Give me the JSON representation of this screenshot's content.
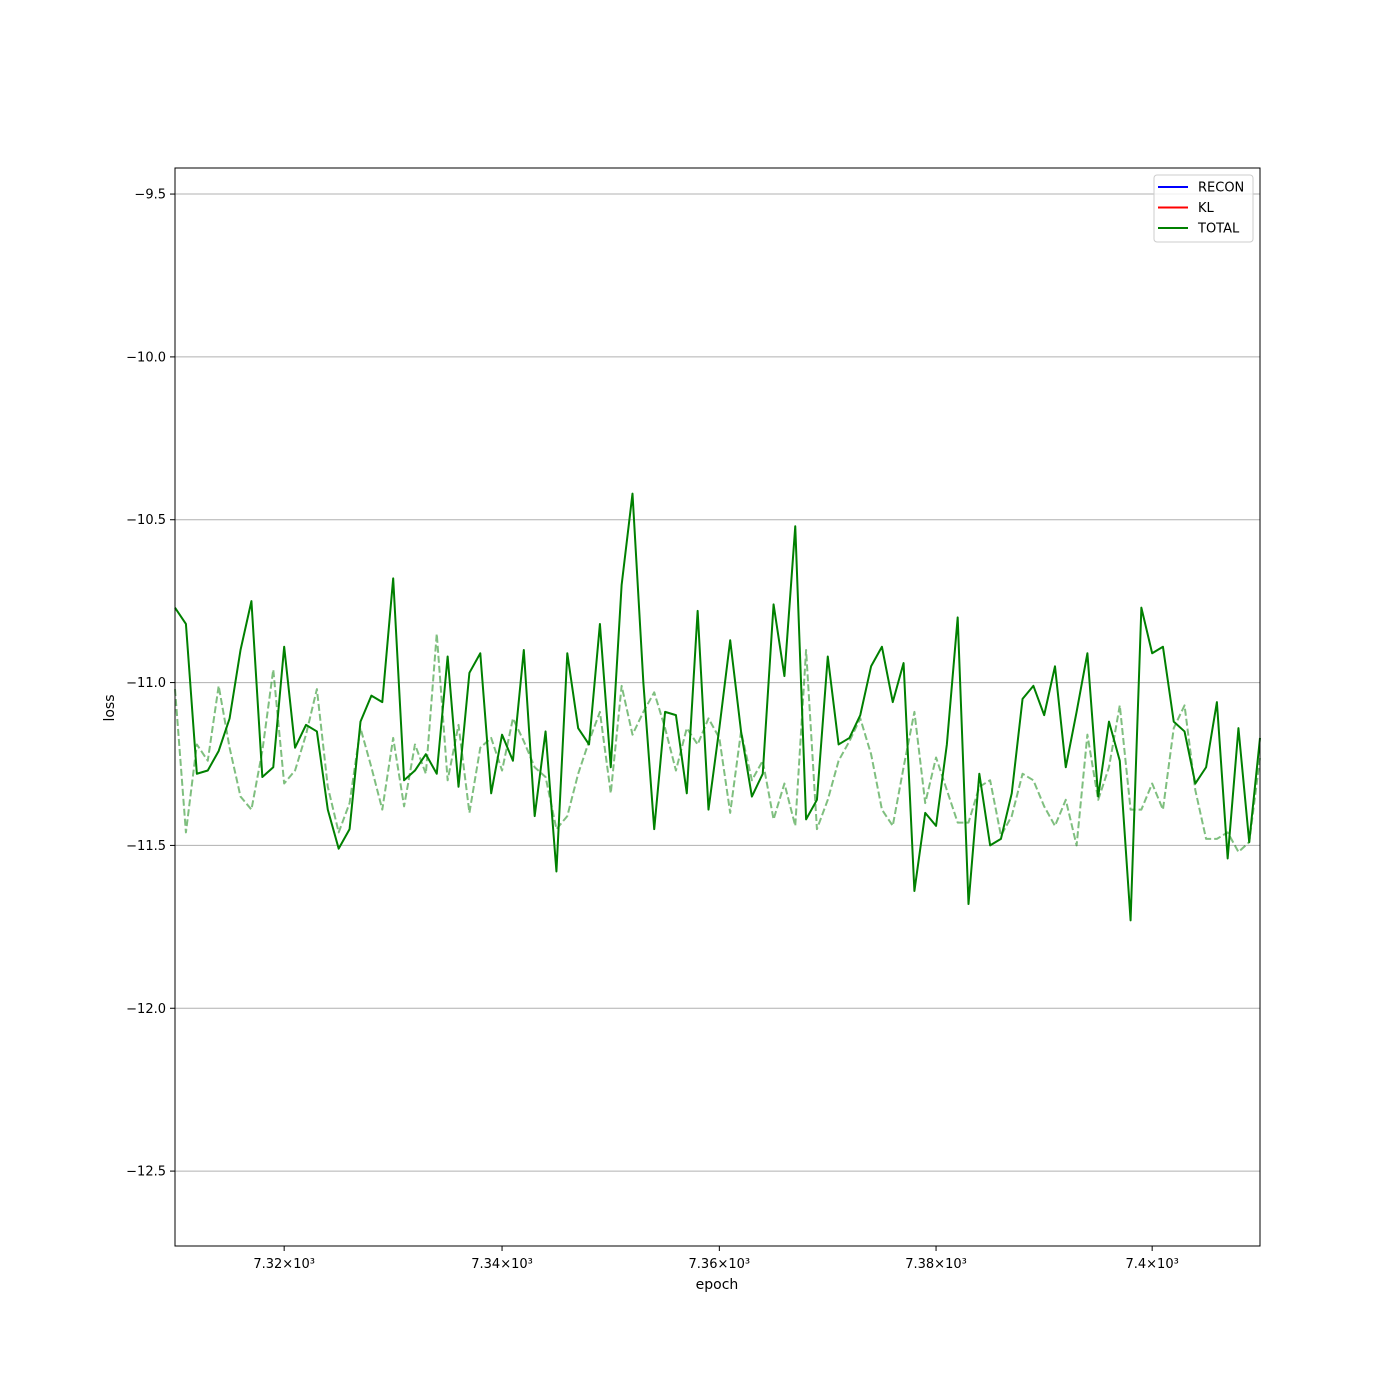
{
  "chart_data": {
    "type": "line",
    "title": "",
    "xlabel": "epoch",
    "ylabel": "loss",
    "xscale": "log",
    "xlim": [
      7310,
      7410
    ],
    "ylim": [
      -12.73,
      -9.42
    ],
    "grid": "y-major",
    "legend_position": "top-right",
    "x_ticks": [
      {
        "value": 7320,
        "label": "7.32×10³"
      },
      {
        "value": 7340,
        "label": "7.34×10³"
      },
      {
        "value": 7360,
        "label": "7.36×10³"
      },
      {
        "value": 7380,
        "label": "7.38×10³"
      },
      {
        "value": 7400,
        "label": "7.4×10³"
      }
    ],
    "y_ticks": [
      {
        "value": -9.5,
        "label": "−9.5"
      },
      {
        "value": -10.0,
        "label": "−10.0"
      },
      {
        "value": -10.5,
        "label": "−10.5"
      },
      {
        "value": -11.0,
        "label": "−11.0"
      },
      {
        "value": -11.5,
        "label": "−11.5"
      },
      {
        "value": -12.0,
        "label": "−12.0"
      },
      {
        "value": -12.5,
        "label": "−12.5"
      }
    ],
    "legend": [
      {
        "name": "RECON",
        "color": "#0000ff"
      },
      {
        "name": "KL",
        "color": "#ff0000"
      },
      {
        "name": "TOTAL",
        "color": "#008000"
      }
    ],
    "x_start": 7310,
    "x_step": 1,
    "series": [
      {
        "name": "TOTAL",
        "color": "#008000",
        "style": "solid",
        "values": [
          -10.77,
          -10.82,
          -11.28,
          -11.27,
          -11.21,
          -11.11,
          -10.9,
          -10.75,
          -11.29,
          -11.26,
          -10.89,
          -11.2,
          -11.13,
          -11.15,
          -11.39,
          -11.51,
          -11.45,
          -11.12,
          -11.04,
          -11.06,
          -10.68,
          -11.3,
          -11.27,
          -11.22,
          -11.28,
          -10.92,
          -11.32,
          -10.97,
          -10.91,
          -11.34,
          -11.16,
          -11.24,
          -10.9,
          -11.41,
          -11.15,
          -11.58,
          -10.91,
          -11.14,
          -11.19,
          -10.82,
          -11.26,
          -10.7,
          -10.42,
          -11.0,
          -11.45,
          -11.09,
          -11.1,
          -11.34,
          -10.78,
          -11.39,
          -11.14,
          -10.87,
          -11.15,
          -11.35,
          -11.28,
          -10.76,
          -10.98,
          -10.52,
          -11.42,
          -11.36,
          -10.92,
          -11.19,
          -11.17,
          -11.1,
          -10.95,
          -10.89,
          -11.06,
          -10.94,
          -11.64,
          -11.4,
          -11.44,
          -11.19,
          -10.8,
          -11.68,
          -11.28,
          -11.5,
          -11.48,
          -11.34,
          -11.05,
          -11.01,
          -11.1,
          -10.95,
          -11.26,
          -11.09,
          -10.91,
          -11.35,
          -11.12,
          -11.24,
          -11.73,
          -10.77,
          -10.91,
          -10.89,
          -11.12,
          -11.15,
          -11.31,
          -11.26,
          -11.06,
          -11.54,
          -11.14,
          -11.49,
          -11.17
        ]
      },
      {
        "name": "",
        "color": "#008000",
        "style": "dashed",
        "opacity": 0.5,
        "values": [
          -11.02,
          -11.46,
          -11.19,
          -11.24,
          -11.01,
          -11.2,
          -11.35,
          -11.39,
          -11.21,
          -10.96,
          -11.31,
          -11.27,
          -11.16,
          -11.02,
          -11.32,
          -11.46,
          -11.37,
          -11.14,
          -11.26,
          -11.39,
          -11.17,
          -11.38,
          -11.19,
          -11.28,
          -10.85,
          -11.3,
          -11.13,
          -11.4,
          -11.2,
          -11.17,
          -11.27,
          -11.11,
          -11.18,
          -11.26,
          -11.29,
          -11.45,
          -11.41,
          -11.28,
          -11.18,
          -11.09,
          -11.34,
          -11.01,
          -11.16,
          -11.09,
          -11.03,
          -11.14,
          -11.27,
          -11.14,
          -11.19,
          -11.11,
          -11.17,
          -11.4,
          -11.15,
          -11.3,
          -11.24,
          -11.42,
          -11.31,
          -11.44,
          -10.9,
          -11.45,
          -11.36,
          -11.24,
          -11.18,
          -11.11,
          -11.22,
          -11.39,
          -11.44,
          -11.26,
          -11.09,
          -11.37,
          -11.23,
          -11.33,
          -11.43,
          -11.43,
          -11.32,
          -11.3,
          -11.47,
          -11.41,
          -11.28,
          -11.3,
          -11.38,
          -11.44,
          -11.36,
          -11.5,
          -11.16,
          -11.36,
          -11.26,
          -11.07,
          -11.39,
          -11.39,
          -11.31,
          -11.39,
          -11.14,
          -11.07,
          -11.33,
          -11.48,
          -11.48,
          -11.46,
          -11.52,
          -11.49,
          -11.23
        ]
      }
    ]
  }
}
